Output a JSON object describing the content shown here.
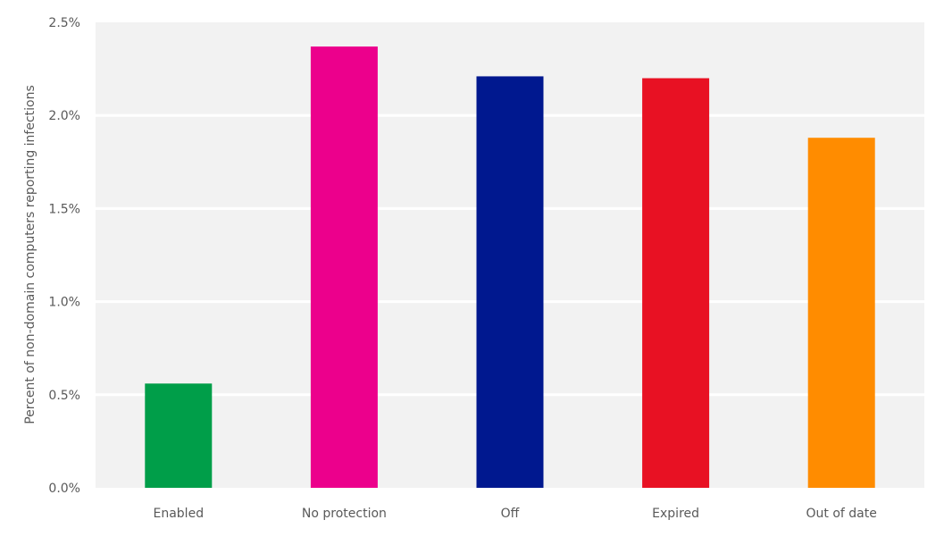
{
  "chart_data": {
    "type": "bar",
    "title": "",
    "xlabel": "",
    "ylabel": "Percent of non-domain computers reporting infections",
    "categories": [
      "Enabled",
      "No protection",
      "Off",
      "Expired",
      "Out of date"
    ],
    "values": [
      0.56,
      2.37,
      2.21,
      2.2,
      1.88
    ],
    "colors": [
      "#009e49",
      "#ec008c",
      "#00188f",
      "#e81123",
      "#ff8c00"
    ],
    "ylim": [
      0,
      2.5
    ],
    "yticks": [
      0,
      0.5,
      1.0,
      1.5,
      2.0,
      2.5
    ],
    "ytick_labels": [
      "0.0%",
      "0.5%",
      "1.0%",
      "1.5%",
      "2.0%",
      "2.5%"
    ],
    "grid": true,
    "plot_background": "#f2f2f2",
    "legend": "none"
  }
}
